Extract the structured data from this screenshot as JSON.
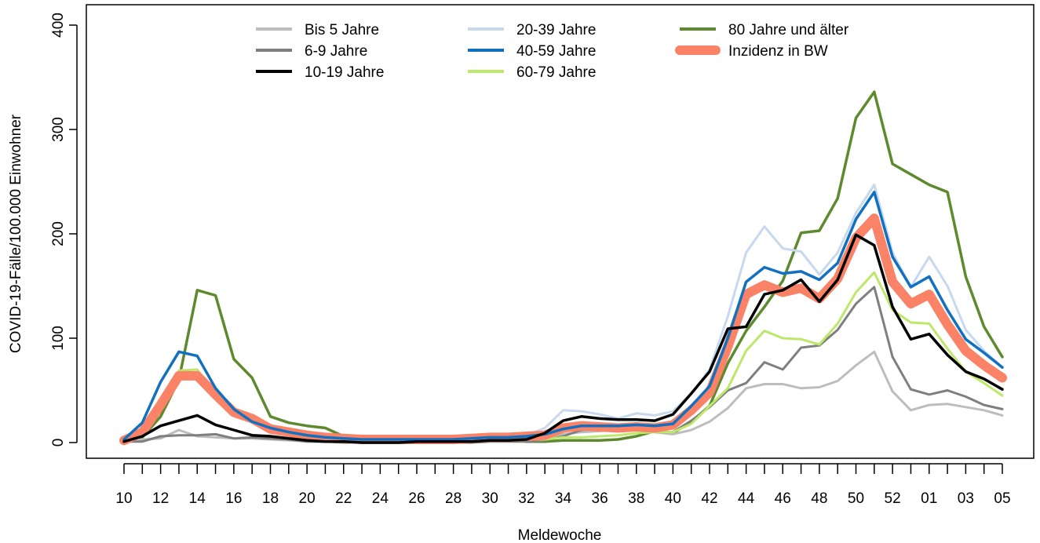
{
  "chart_data": {
    "type": "line",
    "xlabel": "Meldewoche",
    "ylabel": "COVID-19-Fälle/100.000 Einwohner",
    "ylim": [
      0,
      400
    ],
    "yticks": [
      0,
      100,
      200,
      300,
      400
    ],
    "x": [
      "10",
      "11",
      "12",
      "13",
      "14",
      "15",
      "16",
      "17",
      "18",
      "19",
      "20",
      "21",
      "22",
      "23",
      "24",
      "25",
      "26",
      "27",
      "28",
      "29",
      "30",
      "31",
      "32",
      "33",
      "34",
      "35",
      "36",
      "37",
      "38",
      "39",
      "40",
      "41",
      "42",
      "43",
      "44",
      "45",
      "46",
      "47",
      "48",
      "49",
      "50",
      "51",
      "52",
      "53",
      "01",
      "02",
      "03",
      "04",
      "05"
    ],
    "xtick_labels": [
      "10",
      "12",
      "14",
      "16",
      "18",
      "20",
      "22",
      "24",
      "26",
      "28",
      "30",
      "32",
      "34",
      "36",
      "38",
      "40",
      "42",
      "44",
      "46",
      "48",
      "50",
      "52",
      "01",
      "03",
      "05"
    ],
    "grid": false,
    "legend_position": "top",
    "series": [
      {
        "name": "Bis 5 Jahre",
        "color": "#bdbdbd",
        "width": 3,
        "values": [
          1,
          3,
          4,
          12,
          6,
          5,
          4,
          4,
          3,
          2,
          1,
          1,
          1,
          1,
          0,
          0,
          1,
          1,
          1,
          1,
          2,
          2,
          3,
          4,
          8,
          10,
          11,
          12,
          13,
          10,
          8,
          12,
          20,
          33,
          52,
          56,
          56,
          52,
          53,
          59,
          74,
          87,
          49,
          31,
          36,
          37,
          34,
          31,
          26
        ]
      },
      {
        "name": "6-9 Jahre",
        "color": "#7f7f7f",
        "width": 3,
        "values": [
          1,
          1,
          6,
          7,
          7,
          8,
          4,
          5,
          4,
          3,
          1,
          1,
          0,
          0,
          0,
          0,
          0,
          0,
          0,
          0,
          1,
          1,
          1,
          2,
          6,
          12,
          13,
          13,
          14,
          10,
          10,
          21,
          34,
          50,
          57,
          77,
          70,
          91,
          93,
          108,
          133,
          149,
          82,
          51,
          46,
          50,
          44,
          36,
          32
        ]
      },
      {
        "name": "10-19 Jahre",
        "color": "#000000",
        "width": 3.5,
        "values": [
          1,
          6,
          16,
          21,
          26,
          17,
          12,
          7,
          6,
          4,
          2,
          1,
          1,
          0,
          0,
          0,
          1,
          1,
          1,
          1,
          2,
          2,
          3,
          9,
          21,
          25,
          23,
          22,
          22,
          21,
          27,
          47,
          68,
          109,
          111,
          142,
          146,
          156,
          135,
          156,
          199,
          189,
          130,
          99,
          104,
          84,
          68,
          61,
          51
        ]
      },
      {
        "name": "20-39 Jahre",
        "color": "#c6d9ee",
        "width": 3,
        "values": [
          3,
          8,
          38,
          68,
          62,
          48,
          28,
          19,
          12,
          8,
          6,
          5,
          4,
          3,
          3,
          3,
          3,
          3,
          3,
          4,
          5,
          6,
          7,
          14,
          31,
          30,
          27,
          23,
          28,
          26,
          30,
          47,
          70,
          121,
          182,
          207,
          186,
          183,
          161,
          182,
          220,
          247,
          182,
          149,
          178,
          150,
          108,
          88,
          72
        ]
      },
      {
        "name": "40-59 Jahre",
        "color": "#1170c0",
        "width": 3.5,
        "values": [
          3,
          19,
          58,
          87,
          83,
          52,
          32,
          20,
          14,
          10,
          7,
          5,
          4,
          3,
          3,
          3,
          3,
          3,
          3,
          4,
          5,
          5,
          6,
          8,
          13,
          16,
          16,
          16,
          17,
          16,
          18,
          35,
          54,
          100,
          154,
          168,
          162,
          164,
          156,
          172,
          214,
          240,
          178,
          149,
          159,
          127,
          99,
          86,
          72
        ]
      },
      {
        "name": "60-79 Jahre",
        "color": "#bde86a",
        "width": 3,
        "values": [
          2,
          6,
          30,
          69,
          70,
          45,
          28,
          20,
          13,
          9,
          6,
          4,
          3,
          2,
          2,
          2,
          2,
          2,
          2,
          2,
          3,
          3,
          3,
          3,
          5,
          5,
          6,
          7,
          9,
          10,
          10,
          18,
          35,
          52,
          88,
          107,
          100,
          99,
          94,
          114,
          144,
          163,
          127,
          115,
          114,
          90,
          68,
          57,
          45
        ]
      },
      {
        "name": "80 Jahre und älter",
        "color": "#5e8a2e",
        "width": 3.5,
        "values": [
          2,
          5,
          25,
          60,
          146,
          141,
          80,
          62,
          25,
          19,
          16,
          14,
          6,
          4,
          2,
          2,
          4,
          3,
          3,
          3,
          3,
          3,
          1,
          1,
          2,
          2,
          2,
          3,
          6,
          11,
          9,
          20,
          35,
          76,
          107,
          130,
          155,
          201,
          203,
          234,
          311,
          336,
          267,
          257,
          247,
          240,
          159,
          111,
          82
        ]
      },
      {
        "name": "Inzidenz in BW",
        "color": "#fa8367",
        "width": 12,
        "values": [
          2,
          10,
          36,
          64,
          64,
          46,
          29,
          23,
          13,
          10,
          7,
          5,
          4,
          3,
          3,
          3,
          3,
          3,
          3,
          4,
          5,
          5,
          6,
          7,
          14,
          16,
          15,
          14,
          15,
          14,
          17,
          31,
          48,
          92,
          142,
          151,
          144,
          148,
          138,
          157,
          196,
          215,
          154,
          133,
          142,
          113,
          88,
          74,
          62
        ]
      }
    ]
  }
}
